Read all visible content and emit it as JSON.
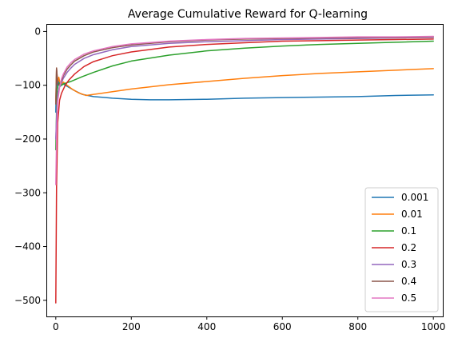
{
  "chart_data": {
    "type": "line",
    "title": "Average Cumulative Reward for Q-learning",
    "xlabel": "",
    "ylabel": "",
    "xlim": [
      -25,
      1025
    ],
    "ylim": [
      -530,
      14
    ],
    "x_ticks": [
      0,
      200,
      400,
      600,
      800,
      1000
    ],
    "y_ticks": [
      0,
      -100,
      -200,
      -300,
      -400,
      -500
    ],
    "x_tick_labels": [
      "0",
      "200",
      "400",
      "600",
      "800",
      "1000"
    ],
    "y_tick_labels": [
      "0",
      "−100",
      "−200",
      "−300",
      "−400",
      "−500"
    ],
    "grid": false,
    "legend_position": "lower right",
    "series": [
      {
        "name": "0.001",
        "color": "#1f77b4",
        "points": [
          [
            0,
            -150
          ],
          [
            2,
            -70
          ],
          [
            5,
            -105
          ],
          [
            8,
            -90
          ],
          [
            12,
            -102
          ],
          [
            18,
            -96
          ],
          [
            25,
            -100
          ],
          [
            35,
            -104
          ],
          [
            50,
            -110
          ],
          [
            70,
            -117
          ],
          [
            100,
            -121
          ],
          [
            150,
            -124
          ],
          [
            200,
            -126
          ],
          [
            250,
            -127
          ],
          [
            300,
            -127
          ],
          [
            400,
            -126
          ],
          [
            500,
            -124
          ],
          [
            600,
            -123
          ],
          [
            700,
            -122
          ],
          [
            800,
            -121
          ],
          [
            900,
            -119
          ],
          [
            1000,
            -118
          ]
        ]
      },
      {
        "name": "0.01",
        "color": "#ff7f0e",
        "points": [
          [
            0,
            -130
          ],
          [
            2,
            -68
          ],
          [
            5,
            -95
          ],
          [
            8,
            -85
          ],
          [
            12,
            -100
          ],
          [
            20,
            -94
          ],
          [
            30,
            -100
          ],
          [
            45,
            -108
          ],
          [
            60,
            -114
          ],
          [
            80,
            -119
          ],
          [
            100,
            -117
          ],
          [
            150,
            -112
          ],
          [
            200,
            -107
          ],
          [
            300,
            -99
          ],
          [
            400,
            -93
          ],
          [
            500,
            -87
          ],
          [
            600,
            -82
          ],
          [
            700,
            -78
          ],
          [
            800,
            -75
          ],
          [
            900,
            -72
          ],
          [
            1000,
            -69
          ]
        ]
      },
      {
        "name": "0.1",
        "color": "#2ca02c",
        "points": [
          [
            0,
            -220
          ],
          [
            3,
            -110
          ],
          [
            6,
            -100
          ],
          [
            10,
            -96
          ],
          [
            15,
            -100
          ],
          [
            20,
            -98
          ],
          [
            30,
            -95
          ],
          [
            40,
            -93
          ],
          [
            50,
            -90
          ],
          [
            70,
            -84
          ],
          [
            100,
            -76
          ],
          [
            150,
            -64
          ],
          [
            200,
            -55
          ],
          [
            300,
            -44
          ],
          [
            400,
            -36
          ],
          [
            500,
            -31
          ],
          [
            600,
            -27
          ],
          [
            700,
            -24
          ],
          [
            800,
            -22
          ],
          [
            900,
            -20
          ],
          [
            1000,
            -18
          ]
        ]
      },
      {
        "name": "0.2",
        "color": "#d62728",
        "points": [
          [
            0,
            -505
          ],
          [
            2,
            -290
          ],
          [
            5,
            -170
          ],
          [
            10,
            -128
          ],
          [
            15,
            -115
          ],
          [
            25,
            -100
          ],
          [
            35,
            -90
          ],
          [
            50,
            -79
          ],
          [
            75,
            -65
          ],
          [
            100,
            -56
          ],
          [
            150,
            -45
          ],
          [
            200,
            -38
          ],
          [
            300,
            -29
          ],
          [
            400,
            -24
          ],
          [
            500,
            -21
          ],
          [
            600,
            -18
          ],
          [
            700,
            -17
          ],
          [
            800,
            -16
          ],
          [
            900,
            -15
          ],
          [
            1000,
            -14
          ]
        ]
      },
      {
        "name": "0.3",
        "color": "#9467bd",
        "points": [
          [
            0,
            -200
          ],
          [
            3,
            -140
          ],
          [
            6,
            -112
          ],
          [
            10,
            -103
          ],
          [
            15,
            -95
          ],
          [
            20,
            -87
          ],
          [
            30,
            -76
          ],
          [
            40,
            -68
          ],
          [
            50,
            -61
          ],
          [
            75,
            -50
          ],
          [
            100,
            -43
          ],
          [
            150,
            -34
          ],
          [
            200,
            -28
          ],
          [
            300,
            -22
          ],
          [
            400,
            -19
          ],
          [
            500,
            -17
          ],
          [
            600,
            -15
          ],
          [
            700,
            -14
          ],
          [
            800,
            -13
          ],
          [
            900,
            -12
          ],
          [
            1000,
            -11
          ]
        ]
      },
      {
        "name": "0.4",
        "color": "#8c564b",
        "points": [
          [
            0,
            -135
          ],
          [
            2,
            -68
          ],
          [
            5,
            -98
          ],
          [
            10,
            -100
          ],
          [
            15,
            -92
          ],
          [
            20,
            -82
          ],
          [
            30,
            -70
          ],
          [
            40,
            -62
          ],
          [
            50,
            -55
          ],
          [
            75,
            -45
          ],
          [
            100,
            -38
          ],
          [
            150,
            -30
          ],
          [
            200,
            -25
          ],
          [
            300,
            -19
          ],
          [
            400,
            -16
          ],
          [
            500,
            -14
          ],
          [
            600,
            -13
          ],
          [
            700,
            -12
          ],
          [
            800,
            -11
          ],
          [
            900,
            -11
          ],
          [
            1000,
            -10
          ]
        ]
      },
      {
        "name": "0.5",
        "color": "#e377c2",
        "points": [
          [
            0,
            -285
          ],
          [
            2,
            -200
          ],
          [
            5,
            -130
          ],
          [
            10,
            -104
          ],
          [
            15,
            -88
          ],
          [
            20,
            -79
          ],
          [
            30,
            -66
          ],
          [
            40,
            -58
          ],
          [
            50,
            -52
          ],
          [
            75,
            -42
          ],
          [
            100,
            -36
          ],
          [
            150,
            -28
          ],
          [
            200,
            -23
          ],
          [
            300,
            -18
          ],
          [
            400,
            -15
          ],
          [
            500,
            -13
          ],
          [
            600,
            -12
          ],
          [
            700,
            -11
          ],
          [
            800,
            -10
          ],
          [
            900,
            -10
          ],
          [
            1000,
            -9
          ]
        ]
      }
    ]
  }
}
